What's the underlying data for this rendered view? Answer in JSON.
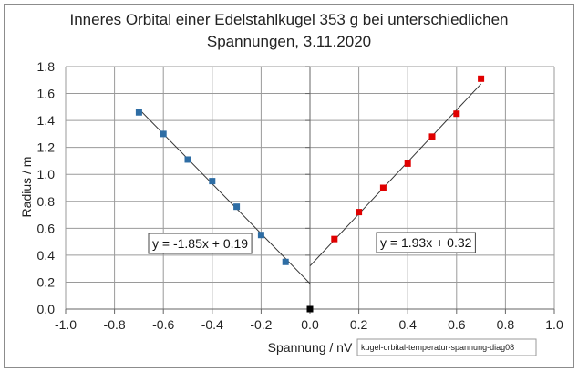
{
  "chart_data": {
    "type": "scatter",
    "title_line1": "Inneres Orbital einer Edelstahlkugel 353 g bei unterschiedlichen",
    "title_line2": "Spannungen, 3.11.2020",
    "xlabel": "Spannung / nV",
    "ylabel": "Radius / m",
    "xlim": [
      -1.0,
      1.0
    ],
    "ylim": [
      0.0,
      1.8
    ],
    "x_ticks": [
      "-1.0",
      "-0.8",
      "-0.6",
      "-0.4",
      "-0.2",
      "0.0",
      "0.2",
      "0.4",
      "0.6",
      "0.8",
      "1.0"
    ],
    "y_ticks": [
      "0.0",
      "0.2",
      "0.4",
      "0.6",
      "0.8",
      "1.0",
      "1.2",
      "1.4",
      "1.6",
      "1.8"
    ],
    "grid": true,
    "series": [
      {
        "color": "#2e6da4",
        "x": [
          -0.7,
          -0.6,
          -0.5,
          -0.4,
          -0.3,
          -0.2,
          -0.1
        ],
        "y": [
          1.46,
          1.3,
          1.11,
          0.95,
          0.76,
          0.55,
          0.35
        ],
        "trendline": {
          "slope": -1.85,
          "intercept": 0.19,
          "x_range": [
            -0.7,
            0.0
          ]
        },
        "equation": "y = -1.85x + 0.19"
      },
      {
        "color": "#e00000",
        "x": [
          0.1,
          0.2,
          0.3,
          0.4,
          0.5,
          0.6,
          0.7
        ],
        "y": [
          0.52,
          0.72,
          0.9,
          1.08,
          1.28,
          1.45,
          1.71
        ],
        "trendline": {
          "slope": 1.93,
          "intercept": 0.32,
          "x_range": [
            0.0,
            0.7
          ]
        },
        "equation": "y = 1.93x + 0.32"
      },
      {
        "color": "#000000",
        "x": [
          0.0
        ],
        "y": [
          0.0
        ]
      }
    ],
    "annotation": "kugel-orbital-temperatur-spannung-diag08"
  }
}
